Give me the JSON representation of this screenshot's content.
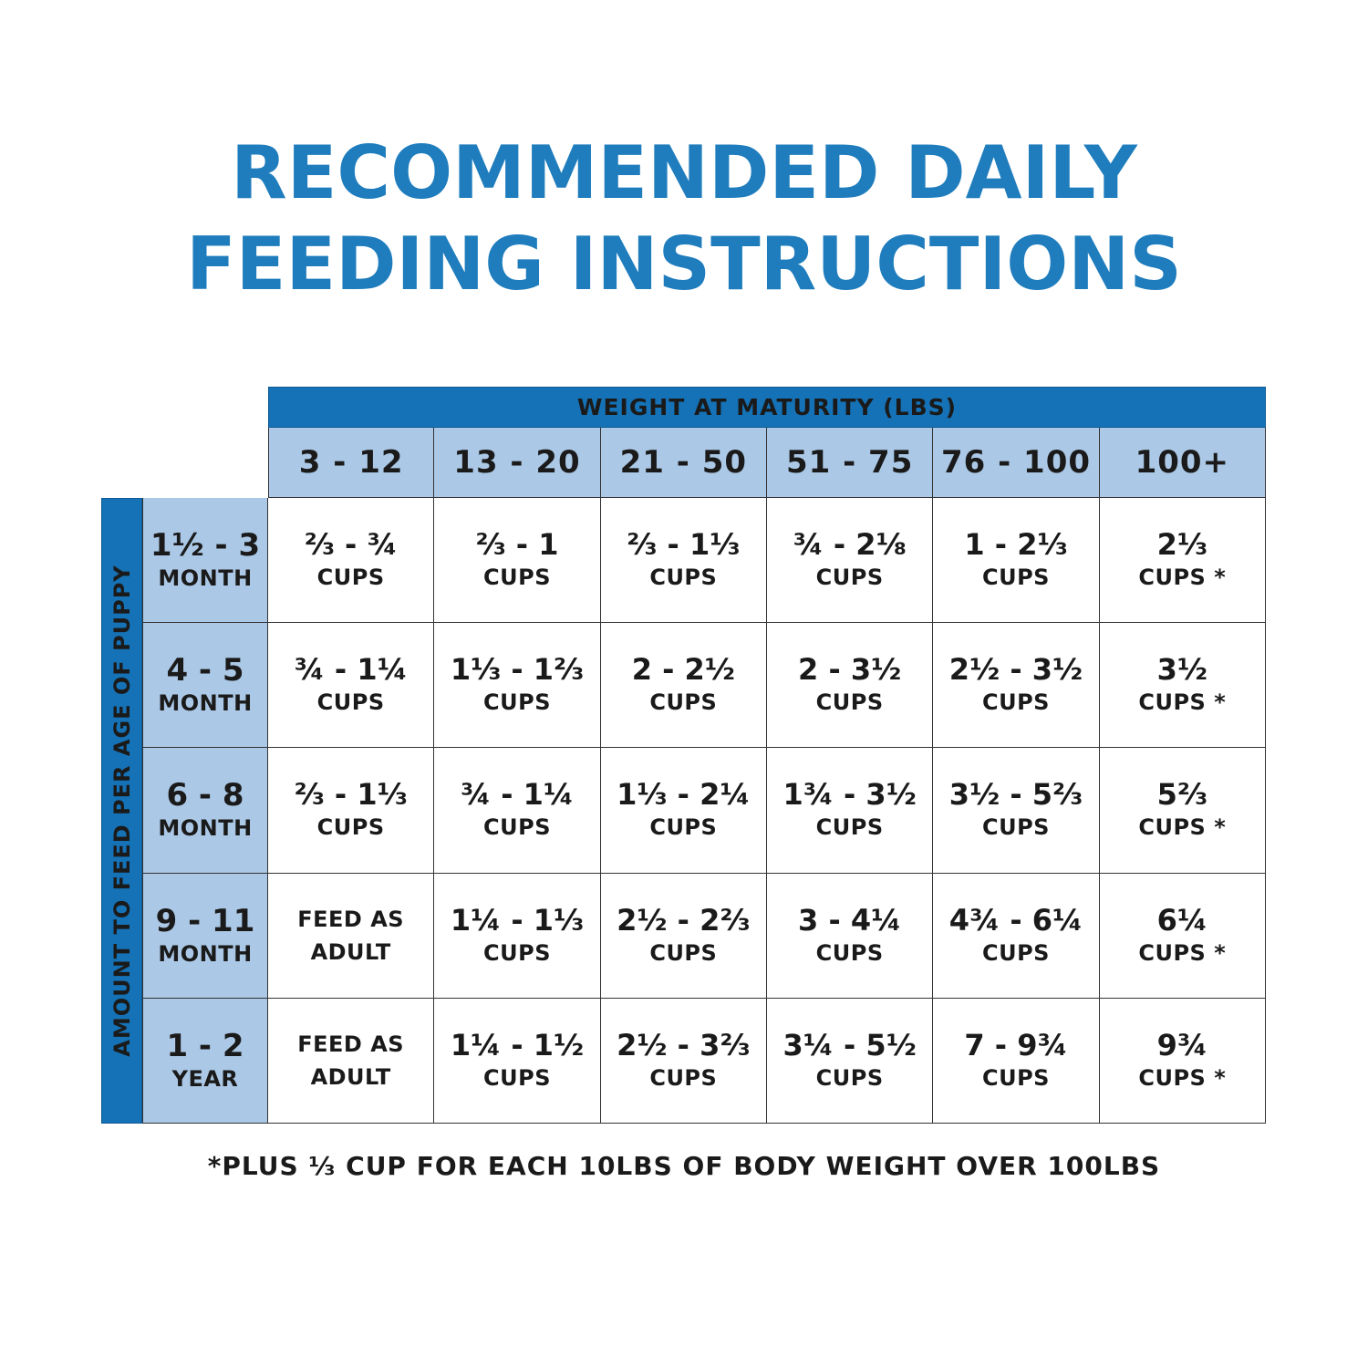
{
  "title": {
    "line1": "RECOMMENDED DAILY",
    "line2": "FEEDING INSTRUCTIONS"
  },
  "colors": {
    "title": "#1f7dbd",
    "header_blue": "#1572b6",
    "light_blue": "#abc8e6"
  },
  "table": {
    "column_group_label": "WEIGHT AT MATURITY (LBS)",
    "row_group_label": "AMOUNT TO FEED PER AGE OF PUPPY",
    "columns": [
      "3 - 12",
      "13 - 20",
      "21 - 50",
      "51 - 75",
      "76 - 100",
      "100+"
    ],
    "rows": [
      {
        "age": "1½ - 3",
        "unit": "MONTH",
        "cells": [
          {
            "amount": "⅔ - ¾",
            "unit": "CUPS"
          },
          {
            "amount": "⅔ - 1",
            "unit": "CUPS"
          },
          {
            "amount": "⅔ - 1⅓",
            "unit": "CUPS"
          },
          {
            "amount": "¾ - 2⅛",
            "unit": "CUPS"
          },
          {
            "amount": "1 - 2⅓",
            "unit": "CUPS"
          },
          {
            "amount": "2⅓",
            "unit": "CUPS *"
          }
        ]
      },
      {
        "age": "4 - 5",
        "unit": "MONTH",
        "cells": [
          {
            "amount": "¾ - 1¼",
            "unit": "CUPS"
          },
          {
            "amount": "1⅓ - 1⅔",
            "unit": "CUPS"
          },
          {
            "amount": "2 - 2½",
            "unit": "CUPS"
          },
          {
            "amount": "2 - 3½",
            "unit": "CUPS"
          },
          {
            "amount": "2½ - 3½",
            "unit": "CUPS"
          },
          {
            "amount": "3½",
            "unit": "CUPS *"
          }
        ]
      },
      {
        "age": "6 - 8",
        "unit": "MONTH",
        "cells": [
          {
            "amount": "⅔ - 1⅓",
            "unit": "CUPS"
          },
          {
            "amount": "¾ - 1¼",
            "unit": "CUPS"
          },
          {
            "amount": "1⅓ - 2¼",
            "unit": "CUPS"
          },
          {
            "amount": "1¾ - 3½",
            "unit": "CUPS"
          },
          {
            "amount": "3½ - 5⅔",
            "unit": "CUPS"
          },
          {
            "amount": "5⅔",
            "unit": "CUPS *"
          }
        ]
      },
      {
        "age": "9 - 11",
        "unit": "MONTH",
        "cells": [
          {
            "feed1": "FEED AS",
            "feed2": "ADULT"
          },
          {
            "amount": "1¼ - 1⅓",
            "unit": "CUPS"
          },
          {
            "amount": "2½ - 2⅔",
            "unit": "CUPS"
          },
          {
            "amount": "3 - 4¼",
            "unit": "CUPS"
          },
          {
            "amount": "4¾ - 6¼",
            "unit": "CUPS"
          },
          {
            "amount": "6¼",
            "unit": "CUPS *"
          }
        ]
      },
      {
        "age": "1 - 2",
        "unit": "YEAR",
        "cells": [
          {
            "feed1": "FEED AS",
            "feed2": "ADULT"
          },
          {
            "amount": "1¼ - 1½",
            "unit": "CUPS"
          },
          {
            "amount": "2½ - 3⅔",
            "unit": "CUPS"
          },
          {
            "amount": "3¼ - 5½",
            "unit": "CUPS"
          },
          {
            "amount": "7 - 9¾",
            "unit": "CUPS"
          },
          {
            "amount": "9¾",
            "unit": "CUPS *"
          }
        ]
      }
    ]
  },
  "footnote": "*PLUS ⅓ CUP FOR EACH 10LBS OF BODY WEIGHT OVER 100LBS"
}
